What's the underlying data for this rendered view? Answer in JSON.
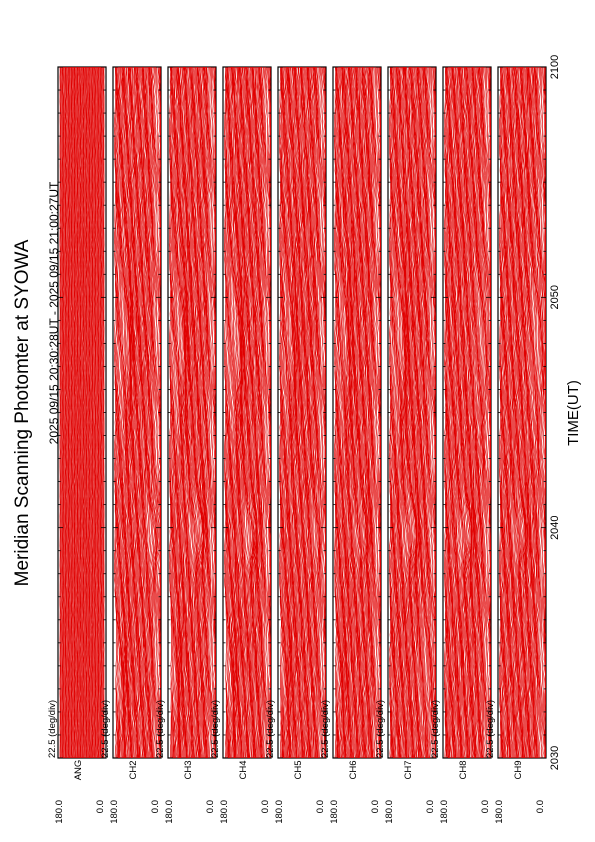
{
  "title": "Meridian Scanning Photomter at SYOWA",
  "subtitle": "2025 09/15 20:30:28UT - 2025 09/15 21:00:27UT",
  "xlabel": "TIME(UT)",
  "x_ticks": [
    "2030",
    "2040",
    "2050",
    "2100"
  ],
  "scale_label": "22.5 (deg/div)",
  "y_tick_top": "180.0",
  "y_tick_bottom": "0.0",
  "colors": {
    "trace": "#e00000",
    "frame": "#000000"
  },
  "chart_data": {
    "type": "line",
    "title": "Meridian Scanning Photomter at SYOWA",
    "subtitle": "2025 09/15 20:30:28UT - 2025 09/15 21:00:27UT",
    "xlabel": "TIME(UT)",
    "x_range": [
      "2030",
      "2100"
    ],
    "ylim": [
      0.0,
      180.0
    ],
    "y_scale": "22.5 (deg/div)",
    "orientation": "rotated 90 degrees counter-clockwise",
    "panels": [
      {
        "channel": "1",
        "channel_label": "ANG",
        "trace_count": 60,
        "activity": []
      },
      {
        "channel": "2",
        "channel_label": "CH2",
        "trace_count": 60,
        "activity": [
          [
            0.3,
            0.35,
            0.85,
            5
          ],
          [
            0.5,
            0.7,
            0.22,
            4
          ],
          [
            0.05,
            0.2,
            0.1,
            3
          ]
        ]
      },
      {
        "channel": "3",
        "channel_label": "CH3",
        "trace_count": 60,
        "activity": [
          [
            0.3,
            0.35,
            0.6,
            5
          ],
          [
            0.5,
            0.7,
            0.22,
            4
          ],
          [
            0.05,
            0.2,
            0.1,
            3
          ]
        ]
      },
      {
        "channel": "4",
        "channel_label": "CH4",
        "trace_count": 60,
        "activity": [
          [
            0.3,
            0.35,
            0.55,
            5
          ],
          [
            0.5,
            0.7,
            0.22,
            5
          ],
          [
            0.05,
            0.2,
            0.1,
            3
          ]
        ]
      },
      {
        "channel": "5",
        "channel_label": "CH5",
        "trace_count": 60,
        "activity": [
          [
            0.3,
            0.35,
            0.85,
            3
          ],
          [
            0.5,
            0.7,
            0.22,
            3
          ],
          [
            0.05,
            0.2,
            0.1,
            2
          ]
        ]
      },
      {
        "channel": "6",
        "channel_label": "CH6",
        "trace_count": 60,
        "activity": [
          [
            0.3,
            0.35,
            0.6,
            3
          ],
          [
            0.5,
            0.7,
            0.22,
            3
          ],
          [
            0.05,
            0.2,
            0.1,
            2
          ]
        ]
      },
      {
        "channel": "7",
        "channel_label": "CH7",
        "trace_count": 60,
        "activity": [
          [
            0.3,
            0.35,
            0.45,
            5
          ],
          [
            0.5,
            0.7,
            0.22,
            4
          ],
          [
            0.05,
            0.2,
            0.85,
            3
          ]
        ]
      },
      {
        "channel": "8",
        "channel_label": "CH8",
        "trace_count": 60,
        "activity": [
          [
            0.3,
            0.35,
            0.45,
            5
          ],
          [
            0.5,
            0.7,
            0.85,
            3
          ]
        ]
      },
      {
        "channel": "9",
        "channel_label": "CH9",
        "trace_count": 60,
        "activity": [
          [
            0.3,
            0.35,
            0.45,
            4
          ],
          [
            0.5,
            0.7,
            0.85,
            4
          ]
        ]
      }
    ]
  }
}
